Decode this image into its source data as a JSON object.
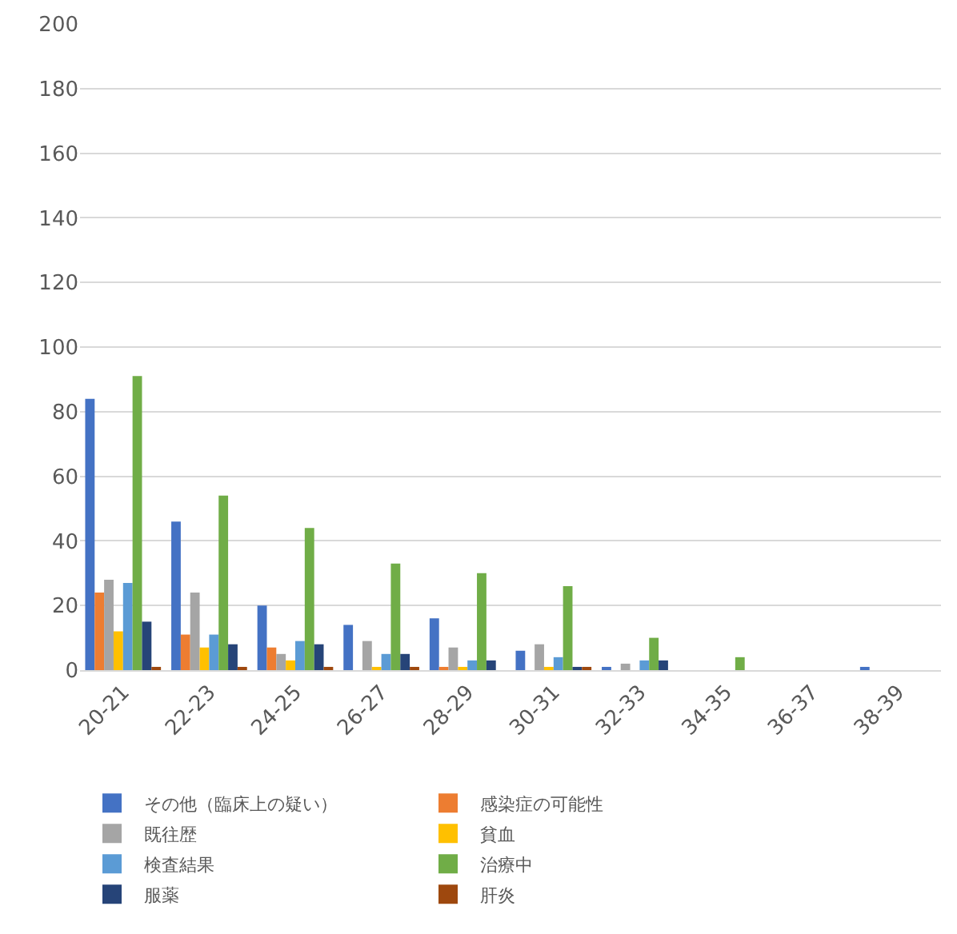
{
  "chart_data": {
    "type": "bar",
    "categories": [
      "20-21",
      "22-23",
      "24-25",
      "26-27",
      "28-29",
      "30-31",
      "32-33",
      "34-35",
      "36-37",
      "38-39"
    ],
    "series": [
      {
        "name": "その他（臨床上の疑い）",
        "color": "#4472c4",
        "values": [
          84,
          46,
          20,
          14,
          16,
          6,
          1,
          0,
          0,
          1
        ]
      },
      {
        "name": "感染症の可能性",
        "color": "#ed7d31",
        "values": [
          24,
          11,
          7,
          0,
          1,
          0,
          0,
          0,
          0,
          0
        ]
      },
      {
        "name": "既往歴",
        "color": "#a5a5a5",
        "values": [
          28,
          24,
          5,
          9,
          7,
          8,
          2,
          0,
          0,
          0
        ]
      },
      {
        "name": "貧血",
        "color": "#ffc000",
        "values": [
          12,
          7,
          3,
          1,
          1,
          1,
          0,
          0,
          0,
          0
        ]
      },
      {
        "name": "検査結果",
        "color": "#5b9bd5",
        "values": [
          27,
          11,
          9,
          5,
          3,
          4,
          3,
          0,
          0,
          0
        ]
      },
      {
        "name": "治療中",
        "color": "#70ad47",
        "values": [
          91,
          54,
          44,
          33,
          30,
          26,
          10,
          4,
          0,
          0
        ]
      },
      {
        "name": "服薬",
        "color": "#264478",
        "values": [
          15,
          8,
          8,
          5,
          3,
          1,
          3,
          0,
          0,
          0
        ]
      },
      {
        "name": "肝炎",
        "color": "#9e480e",
        "values": [
          1,
          1,
          1,
          1,
          0,
          1,
          0,
          0,
          0,
          0
        ]
      }
    ],
    "ylim": [
      0,
      200
    ],
    "yticks": [
      0,
      20,
      40,
      60,
      80,
      100,
      120,
      140,
      160,
      180,
      200
    ],
    "grid": "y",
    "legend": "bottom"
  }
}
